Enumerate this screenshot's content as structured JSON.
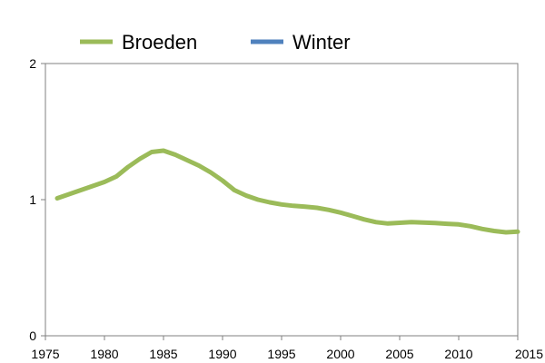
{
  "chart_data": {
    "type": "line",
    "legend_position": "top",
    "grid": false,
    "xlim": [
      1975,
      2015
    ],
    "ylim": [
      0,
      2
    ],
    "x_ticks": [
      "1975",
      "1980",
      "1985",
      "1990",
      "1995",
      "2000",
      "2005",
      "2010",
      "2015"
    ],
    "y_ticks": [
      "0",
      "1",
      "2"
    ],
    "series": [
      {
        "name": "Broeden",
        "color": "#9bbb59",
        "x": [
          1976,
          1977,
          1978,
          1979,
          1980,
          1981,
          1982,
          1983,
          1984,
          1985,
          1986,
          1987,
          1988,
          1989,
          1990,
          1991,
          1992,
          1993,
          1994,
          1995,
          1996,
          1997,
          1998,
          1999,
          2000,
          2001,
          2002,
          2003,
          2004,
          2005,
          2006,
          2007,
          2008,
          2009,
          2010,
          2011,
          2012,
          2013,
          2014,
          2015
        ],
        "values": [
          1.01,
          1.04,
          1.07,
          1.1,
          1.13,
          1.17,
          1.24,
          1.3,
          1.35,
          1.36,
          1.33,
          1.29,
          1.25,
          1.2,
          1.14,
          1.07,
          1.03,
          1.0,
          0.98,
          0.965,
          0.955,
          0.948,
          0.94,
          0.925,
          0.905,
          0.88,
          0.855,
          0.835,
          0.825,
          0.83,
          0.835,
          0.832,
          0.828,
          0.823,
          0.818,
          0.805,
          0.785,
          0.77,
          0.76,
          0.765
        ]
      },
      {
        "name": "Winter",
        "color": "#4f81bd",
        "x": [],
        "values": []
      }
    ]
  }
}
